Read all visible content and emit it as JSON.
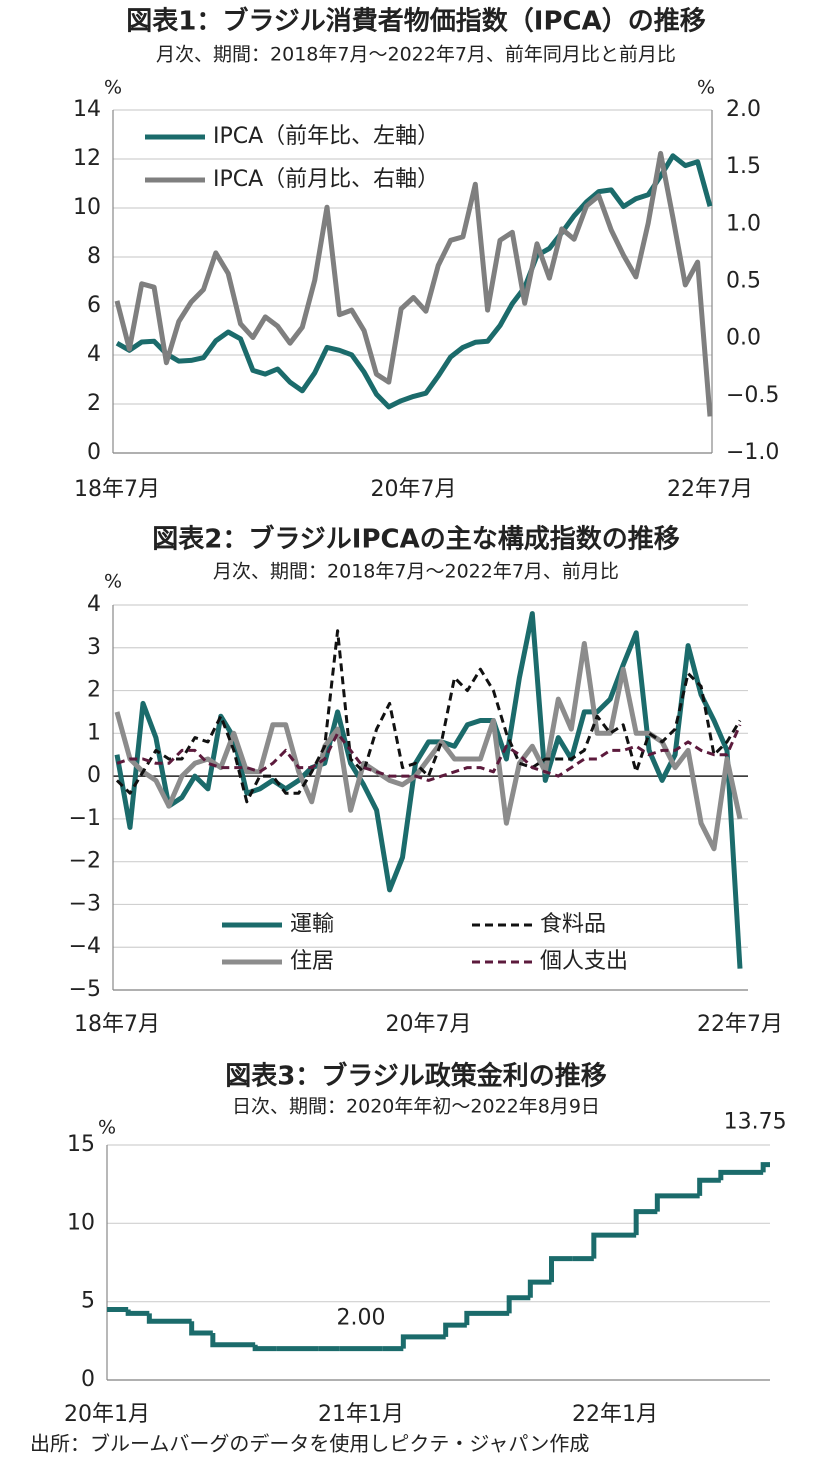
{
  "source": "出所：ブルームバーグのデータを使用しピクテ・ジャパン作成",
  "chart_data": [
    {
      "type": "line",
      "title": "図表1：ブラジル消費者物価指数（IPCA）の推移",
      "subtitle": "月次、期間：2018年7月～2022年7月、前年同月比と前月比",
      "y_unit": "%",
      "y2_unit": "%",
      "grid": true,
      "legend": "upper left",
      "categories": [
        "18年7月",
        null,
        null,
        null,
        null,
        null,
        null,
        null,
        null,
        null,
        null,
        null,
        null,
        null,
        null,
        null,
        null,
        null,
        null,
        null,
        null,
        null,
        null,
        null,
        "20年7月",
        null,
        null,
        null,
        null,
        null,
        null,
        null,
        null,
        null,
        null,
        null,
        null,
        null,
        null,
        null,
        null,
        null,
        null,
        null,
        null,
        null,
        null,
        null,
        "22年7月"
      ],
      "ylim": [
        0,
        14
      ],
      "yticks": [
        0,
        2,
        4,
        6,
        8,
        10,
        12,
        14
      ],
      "y2lim": [
        -1,
        2
      ],
      "y2ticks": [
        {
          "value": -1,
          "label": "−1.0"
        },
        {
          "value": -0.5,
          "label": "−0.5"
        },
        {
          "value": 0,
          "label": "0.0"
        },
        {
          "value": 0.5,
          "label": "0.5"
        },
        {
          "value": 1,
          "label": "1.0"
        },
        {
          "value": 1.5,
          "label": "1.5"
        },
        {
          "value": 2,
          "label": "2.0"
        }
      ],
      "series": [
        {
          "name": "IPCA（前年比、左軸）",
          "color": "#1b6b6b",
          "values": [
            4.48,
            4.19,
            4.53,
            4.56,
            4.05,
            3.75,
            3.78,
            3.89,
            4.58,
            4.94,
            4.66,
            3.37,
            3.22,
            3.43,
            2.89,
            2.54,
            3.27,
            4.31,
            4.19,
            4.01,
            3.3,
            2.4,
            1.88,
            2.13,
            2.31,
            2.44,
            3.14,
            3.92,
            4.31,
            4.52,
            4.56,
            5.2,
            6.1,
            6.76,
            8.06,
            8.35,
            8.99,
            9.68,
            10.25,
            10.67,
            10.74,
            10.06,
            10.38,
            10.54,
            11.3,
            12.13,
            11.73,
            11.89,
            10.07
          ]
        },
        {
          "name": "IPCA（前月比、右軸）",
          "color": "#7f7f7f",
          "axis": "y2",
          "values": [
            0.33,
            -0.09,
            0.48,
            0.45,
            -0.21,
            0.15,
            0.32,
            0.43,
            0.75,
            0.57,
            0.13,
            0.01,
            0.19,
            0.11,
            -0.04,
            0.1,
            0.51,
            1.15,
            0.21,
            0.25,
            0.07,
            -0.31,
            -0.38,
            0.26,
            0.36,
            0.24,
            0.64,
            0.86,
            0.89,
            1.35,
            0.25,
            0.86,
            0.93,
            0.31,
            0.83,
            0.53,
            0.96,
            0.87,
            1.16,
            1.25,
            0.95,
            0.73,
            0.54,
            1.01,
            1.62,
            1.06,
            0.47,
            0.67,
            -0.68
          ]
        }
      ]
    },
    {
      "type": "line",
      "title": "図表2：ブラジルIPCAの主な構成指数の推移",
      "subtitle": "月次、期間：2018年7月～2022年7月、前月比",
      "y_unit": "%",
      "grid": true,
      "legend": "lower center",
      "categories": [
        "18年7月",
        null,
        null,
        null,
        null,
        null,
        null,
        null,
        null,
        null,
        null,
        null,
        null,
        null,
        null,
        null,
        null,
        null,
        null,
        null,
        null,
        null,
        null,
        null,
        "20年7月",
        null,
        null,
        null,
        null,
        null,
        null,
        null,
        null,
        null,
        null,
        null,
        null,
        null,
        null,
        null,
        null,
        null,
        null,
        null,
        null,
        null,
        null,
        null,
        "22年7月"
      ],
      "ylim": [
        -5,
        4
      ],
      "yticks": [
        {
          "value": -5,
          "label": "−5"
        },
        {
          "value": -4,
          "label": "−4"
        },
        {
          "value": -3,
          "label": "−3"
        },
        {
          "value": -2,
          "label": "−2"
        },
        {
          "value": -1,
          "label": "−1"
        },
        0,
        1,
        2,
        3,
        4
      ],
      "series": [
        {
          "name": "運輸",
          "color": "#1b6b6b",
          "values": [
            0.5,
            -1.2,
            1.7,
            0.9,
            -0.7,
            -0.5,
            0.0,
            -0.3,
            1.4,
            0.9,
            -0.4,
            -0.3,
            -0.1,
            -0.3,
            -0.1,
            0.2,
            0.3,
            1.5,
            0.3,
            -0.2,
            -0.8,
            -2.66,
            -1.9,
            0.3,
            0.8,
            0.8,
            0.7,
            1.2,
            1.3,
            1.3,
            0.4,
            2.3,
            3.8,
            -0.1,
            0.9,
            0.4,
            1.5,
            1.5,
            1.8,
            2.6,
            3.35,
            0.6,
            -0.1,
            0.5,
            3.05,
            1.9,
            1.3,
            0.6,
            -4.5
          ]
        },
        {
          "name": "住居",
          "color": "#8c8c8c",
          "values": [
            1.5,
            0.4,
            0.1,
            -0.1,
            -0.7,
            0.0,
            0.3,
            0.4,
            0.2,
            1.0,
            0.1,
            0.1,
            1.2,
            1.2,
            0.1,
            -0.6,
            0.7,
            1.1,
            -0.8,
            0.3,
            0.1,
            -0.1,
            -0.2,
            0.0,
            0.4,
            0.8,
            0.4,
            0.4,
            0.4,
            1.3,
            -1.1,
            0.3,
            0.7,
            0.1,
            1.8,
            1.1,
            3.1,
            1.0,
            1.0,
            2.5,
            1.0,
            1.0,
            0.8,
            0.2,
            0.6,
            -1.1,
            -1.7,
            0.4,
            -1.0
          ]
        },
        {
          "name": "食料品",
          "color": "#111111",
          "dash": true,
          "values": [
            -0.1,
            -0.4,
            0.1,
            0.6,
            0.4,
            0.4,
            0.9,
            0.8,
            1.4,
            0.6,
            -0.6,
            0.0,
            0.0,
            -0.4,
            -0.4,
            0.1,
            0.7,
            3.4,
            0.4,
            0.1,
            1.1,
            1.7,
            0.2,
            0.3,
            0.0,
            0.8,
            2.3,
            2.0,
            2.5,
            2.0,
            1.0,
            0.3,
            0.2,
            0.4,
            0.4,
            0.4,
            0.6,
            1.4,
            1.0,
            1.2,
            0.1,
            1.0,
            0.8,
            1.1,
            2.4,
            2.1,
            0.5,
            0.8,
            1.3
          ]
        },
        {
          "name": "個人支出",
          "color": "#5c1a3c",
          "dash": true,
          "values": [
            0.3,
            0.4,
            0.4,
            0.3,
            0.3,
            0.6,
            0.6,
            0.3,
            0.2,
            0.2,
            0.2,
            0.1,
            0.3,
            0.6,
            0.2,
            0.2,
            0.4,
            1.0,
            0.6,
            0.2,
            0.1,
            0.0,
            0.0,
            0.0,
            -0.1,
            0.0,
            0.1,
            0.2,
            0.2,
            0.1,
            0.7,
            0.5,
            0.2,
            0.1,
            0.0,
            0.2,
            0.4,
            0.4,
            0.6,
            0.6,
            0.7,
            0.5,
            0.6,
            0.6,
            0.8,
            0.6,
            0.5,
            0.5,
            1.2
          ]
        }
      ]
    },
    {
      "type": "step",
      "title": "図表3：ブラジル政策金利の推移",
      "subtitle": "日次、期間：2020年年初～2022年8月9日",
      "y_unit": "%",
      "grid": true,
      "color": "#1b6b6b",
      "categories": [
        "20年1月",
        null,
        null,
        null,
        null,
        null,
        null,
        null,
        null,
        null,
        null,
        null,
        "21年1月",
        null,
        null,
        null,
        null,
        null,
        null,
        null,
        null,
        null,
        null,
        null,
        "22年1月",
        null,
        null,
        null,
        null,
        null,
        null,
        null
      ],
      "values": [
        4.5,
        4.25,
        3.75,
        3.75,
        3.0,
        2.25,
        2.25,
        2.0,
        2.0,
        2.0,
        2.0,
        2.0,
        2.0,
        2.0,
        2.75,
        2.75,
        3.5,
        4.25,
        4.25,
        5.25,
        6.25,
        7.75,
        7.75,
        9.25,
        9.25,
        10.75,
        11.75,
        11.75,
        12.75,
        13.25,
        13.25,
        13.75
      ],
      "value_labels": [
        null,
        null,
        null,
        null,
        null,
        null,
        null,
        null,
        null,
        null,
        null,
        null,
        "2.00",
        null,
        null,
        null,
        null,
        null,
        null,
        null,
        null,
        null,
        null,
        null,
        null,
        null,
        null,
        null,
        null,
        null,
        null,
        "13.75"
      ],
      "ylim": [
        0,
        15
      ],
      "yticks": [
        0,
        5,
        10,
        15
      ]
    }
  ]
}
